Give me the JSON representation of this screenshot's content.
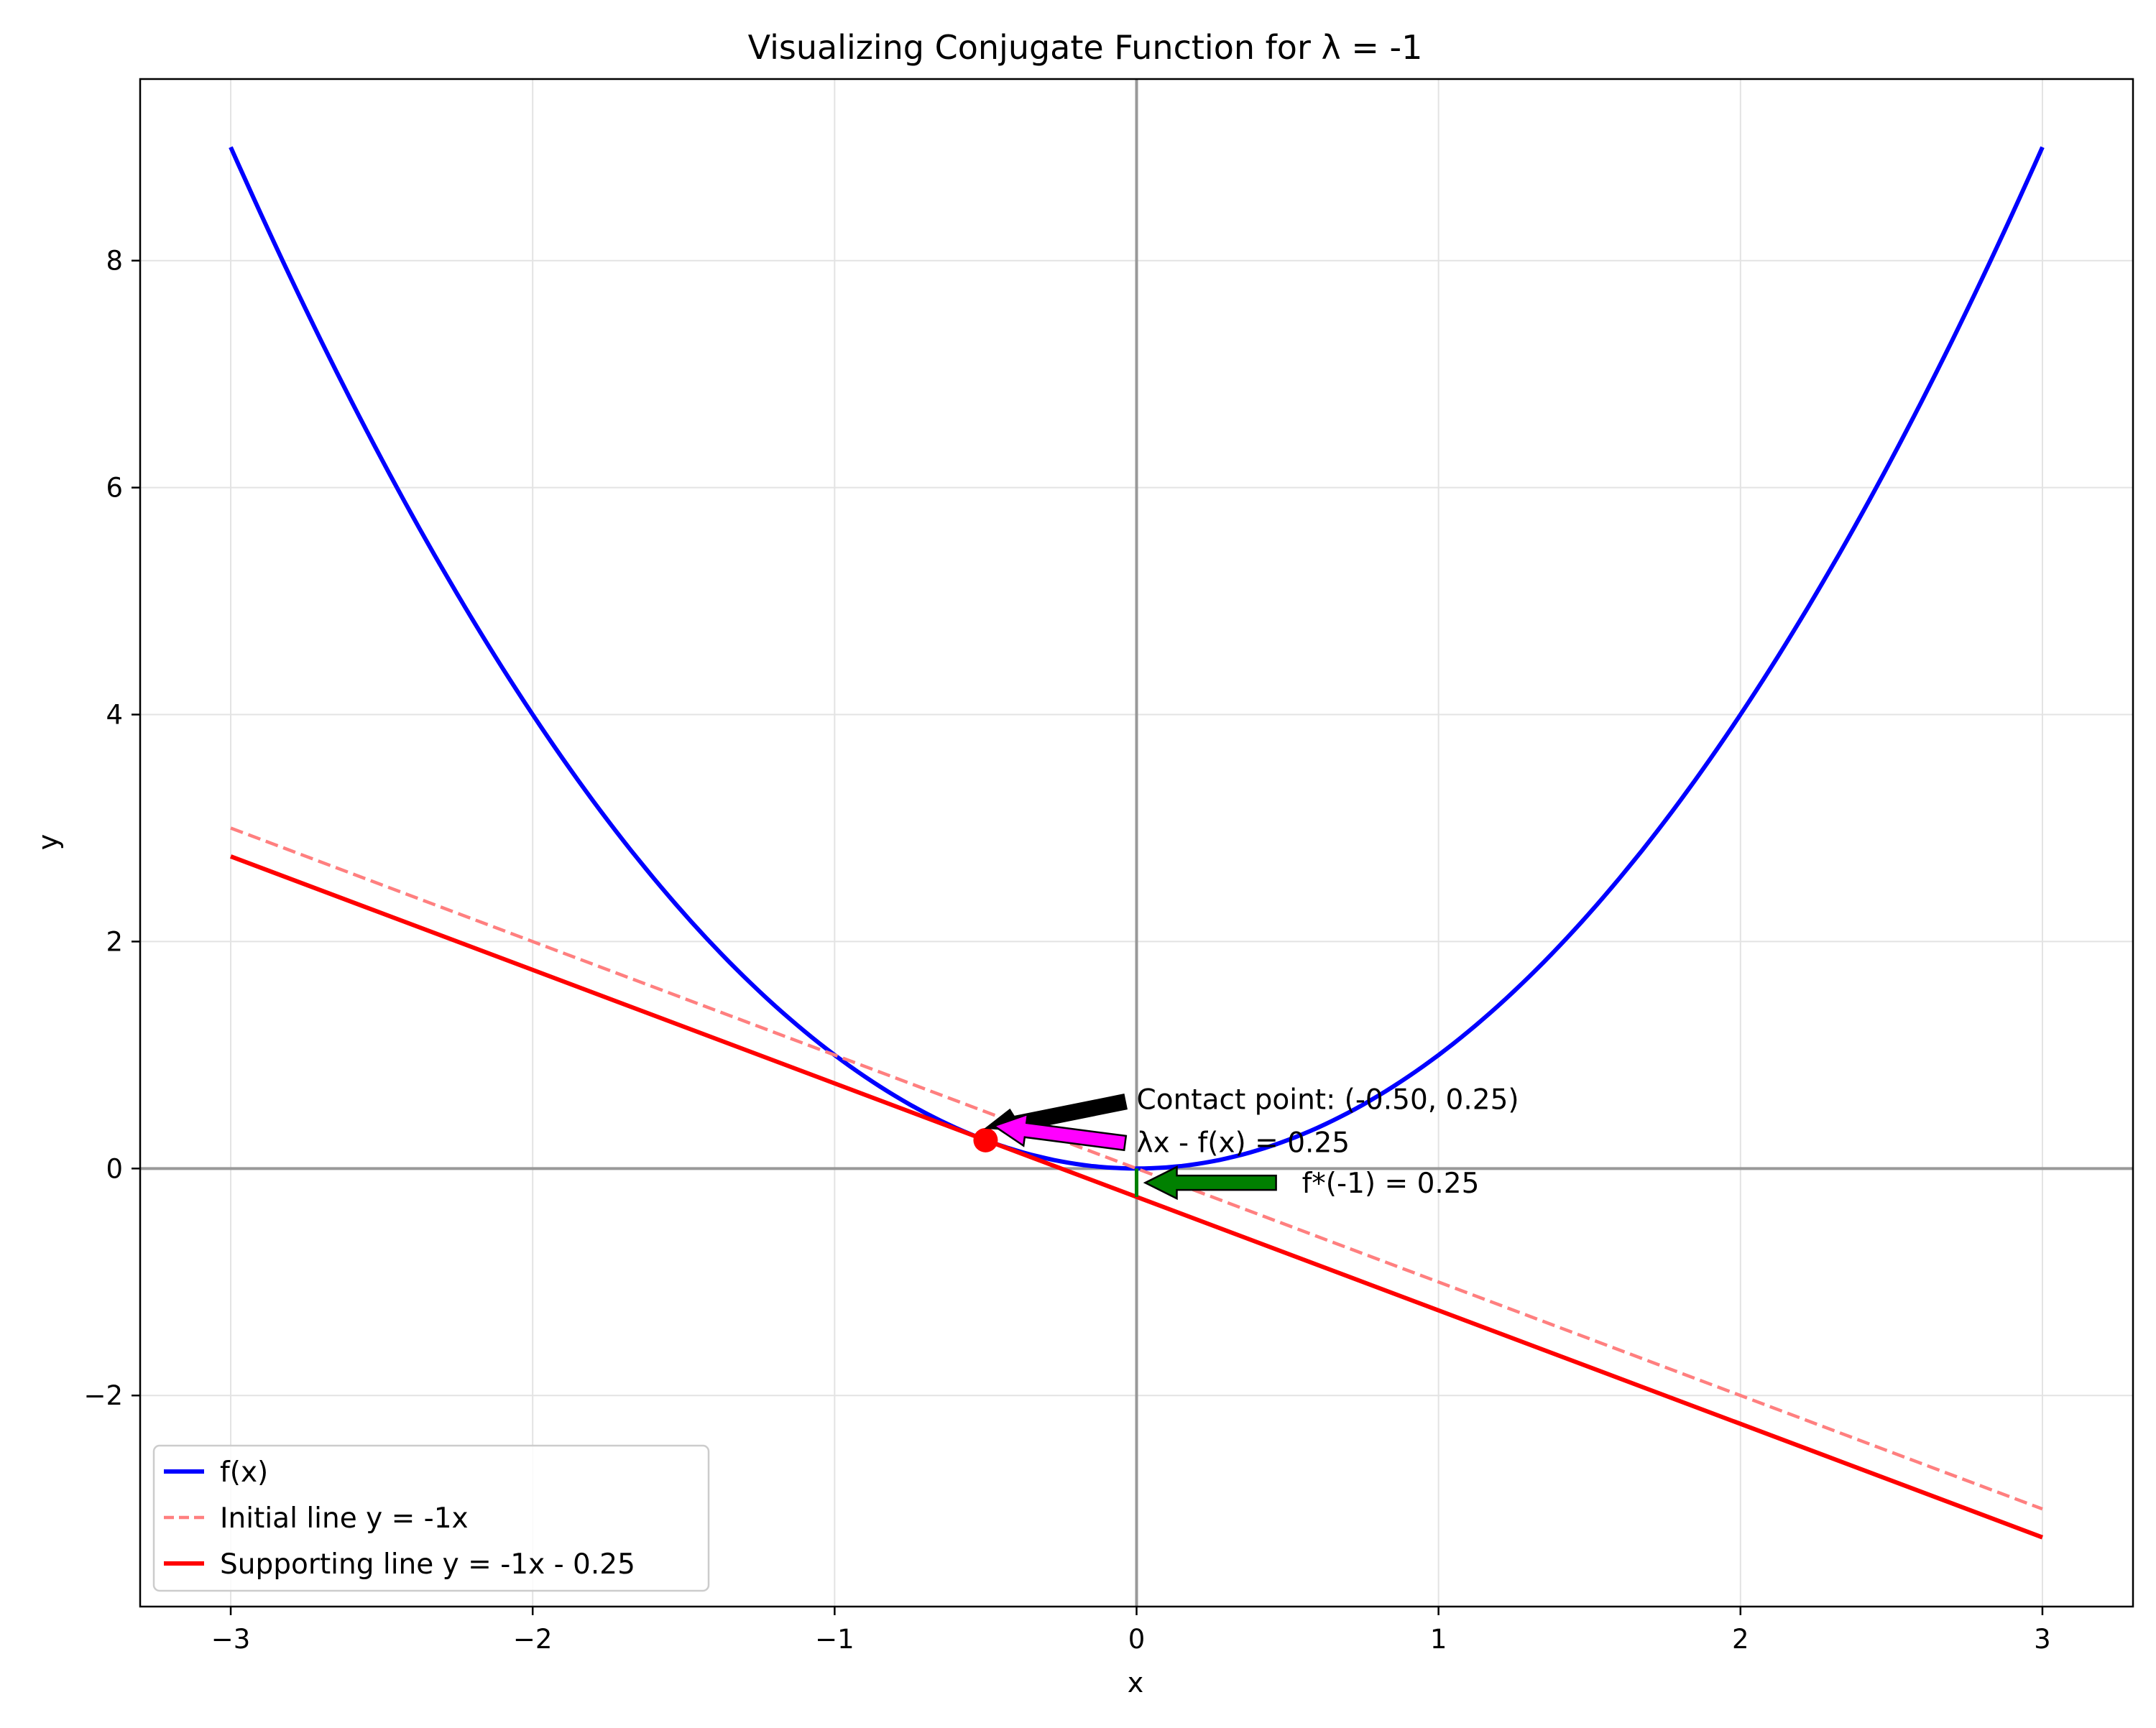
{
  "chart_data": {
    "type": "line",
    "title": "Visualizing Conjugate Function for λ = -1",
    "xlabel": "x",
    "ylabel": "y",
    "xlim": [
      -3.3,
      3.3
    ],
    "ylim": [
      -3.86,
      9.6
    ],
    "grid": true,
    "legend_position": "lower-left",
    "x_ticks": [
      -3,
      -2,
      -1,
      0,
      1,
      2,
      3
    ],
    "x_tick_labels": [
      "−3",
      "−2",
      "−1",
      "0",
      "1",
      "2",
      "3"
    ],
    "y_ticks": [
      -2,
      0,
      2,
      4,
      6,
      8
    ],
    "y_tick_labels": [
      "−2",
      "0",
      "2",
      "4",
      "6",
      "8"
    ],
    "series": [
      {
        "name": "f(x)",
        "color": "#0000ff",
        "style": "solid",
        "x": [
          -3,
          -2.75,
          -2.5,
          -2.25,
          -2,
          -1.75,
          -1.5,
          -1.25,
          -1,
          -0.75,
          -0.5,
          -0.25,
          0,
          0.25,
          0.5,
          0.75,
          1,
          1.25,
          1.5,
          1.75,
          2,
          2.25,
          2.5,
          2.75,
          3
        ],
        "y": [
          9,
          7.5625,
          6.25,
          5.0625,
          4,
          3.0625,
          2.25,
          1.5625,
          1,
          0.5625,
          0.25,
          0.0625,
          0,
          0.0625,
          0.25,
          0.5625,
          1,
          1.5625,
          2.25,
          3.0625,
          4,
          5.0625,
          6.25,
          7.5625,
          9
        ]
      },
      {
        "name": "Initial line y = -1x",
        "color": "#ff7f7f",
        "style": "dashed",
        "x": [
          -3,
          3
        ],
        "y": [
          3,
          -3
        ]
      },
      {
        "name": "Supporting line y = -1x - 0.25",
        "color": "#ff0000",
        "style": "solid",
        "x": [
          -3,
          3
        ],
        "y": [
          2.75,
          -3.25
        ]
      }
    ],
    "contact_point": {
      "x": -0.5,
      "y": 0.25,
      "color": "#ff0000"
    },
    "intercept_segment": {
      "x": 0,
      "y_from": -0.25,
      "y_to": 0,
      "color": "#008000"
    },
    "annotations": [
      {
        "lines": [
          "Contact point: (-0.50, 0.25)",
          "λx - f(x) = 0.25"
        ],
        "text_x": 0,
        "text_y": 0.5,
        "arrow_to_x": -0.5,
        "arrow_to_y": 0.25,
        "arrow_color": "#000000"
      },
      {
        "lines": [
          "λx - f(x) = 0.25"
        ],
        "text_x": 0,
        "text_y": 0.25,
        "arrow_to_x": -0.5,
        "arrow_to_y": 0.375,
        "arrow_color": "#ff00ff",
        "hidden_text": true
      },
      {
        "lines": [
          "f*(-1) = 0.25"
        ],
        "text_x": 0.5,
        "text_y": -0.125,
        "arrow_to_x": 0,
        "arrow_to_y": -0.125,
        "arrow_color": "#008000"
      }
    ]
  }
}
